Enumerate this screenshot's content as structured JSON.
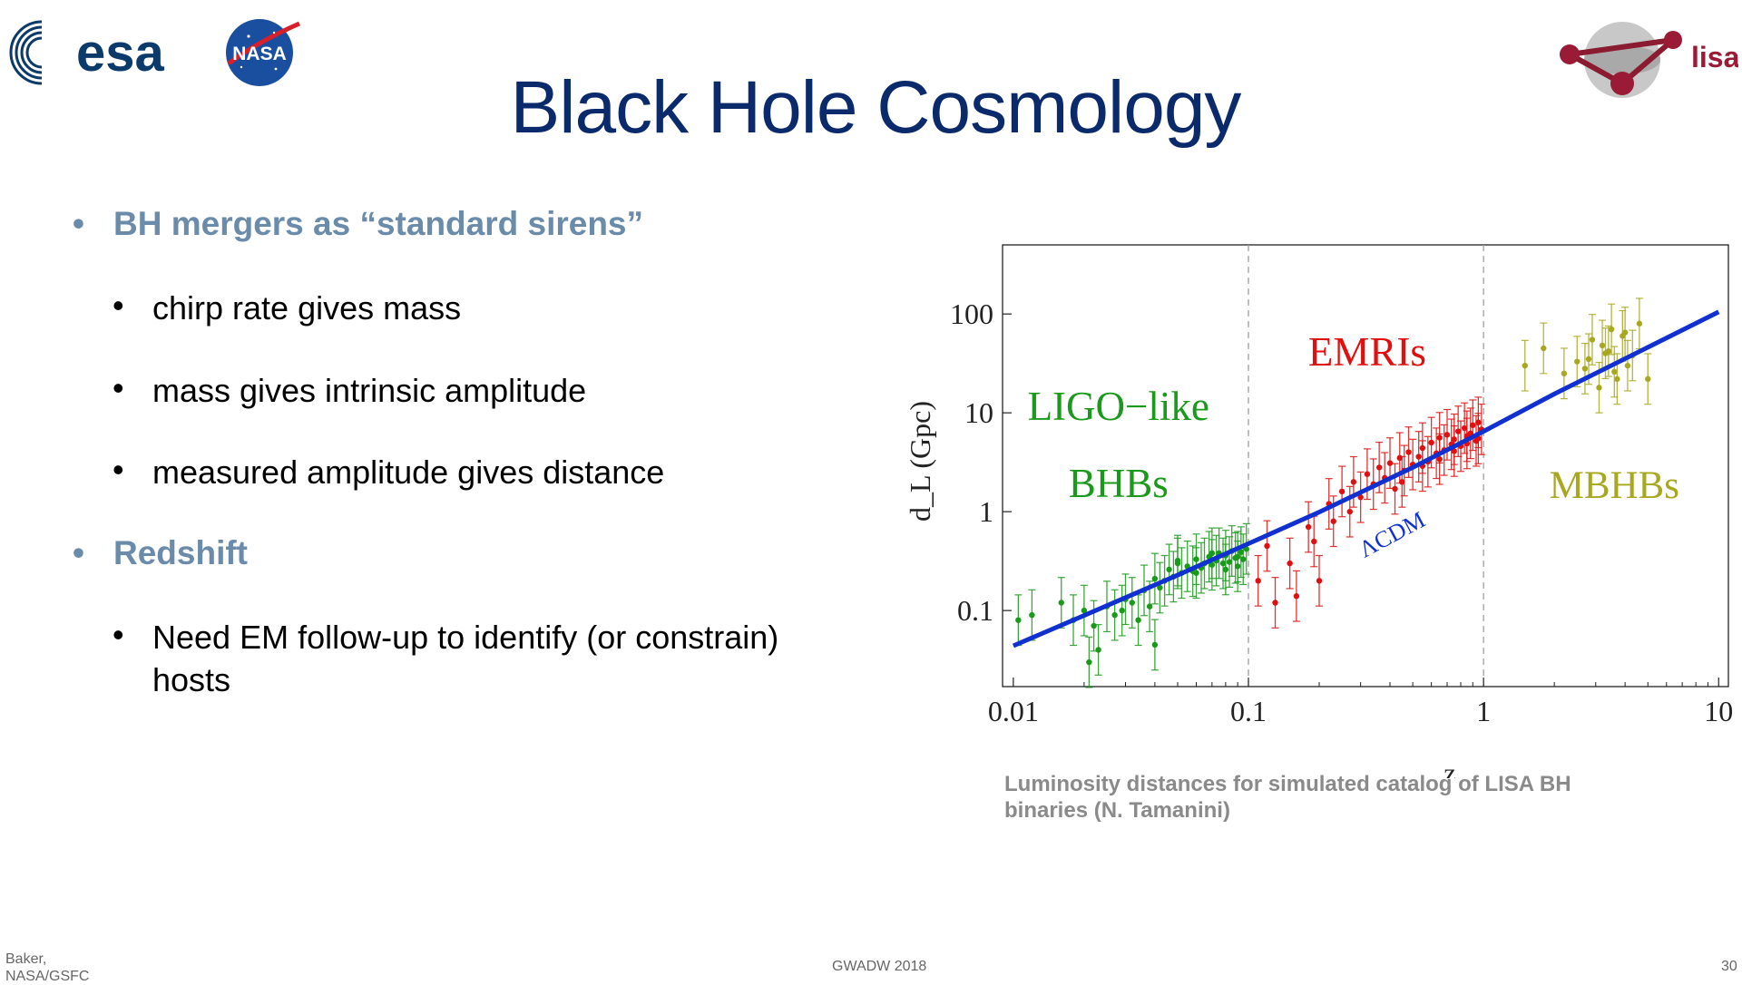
{
  "header": {
    "logos": {
      "esa": "esa",
      "nasa": "NASA",
      "lisa": "lisa"
    },
    "title": "Black Hole Cosmology"
  },
  "content": {
    "bullets": [
      {
        "level": 1,
        "text": "BH mergers as “standard sirens”"
      },
      {
        "level": 2,
        "text": "chirp rate gives mass"
      },
      {
        "level": 2,
        "text": "mass gives intrinsic amplitude"
      },
      {
        "level": 2,
        "text": "measured amplitude gives distance"
      },
      {
        "level": 1,
        "text": "Redshift"
      },
      {
        "level": 2,
        "text": "Need EM follow-up to identify (or constrain) hosts"
      }
    ],
    "caption": "Luminosity distances for simulated catalog of LISA BH binaries (N. Tamanini)"
  },
  "footer": {
    "author_line1": "Baker,",
    "author_line2": "NASA/GSFC",
    "event": "GWADW 2018",
    "page_number": "30"
  },
  "colors": {
    "title": "#0b2a6b",
    "bullet_level1": "#6b8bab",
    "ligo": "#1a9a1a",
    "emri": "#e01010",
    "mbhb": "#a8a820",
    "lcdm": "#1030d0"
  },
  "chart_data": {
    "type": "scatter",
    "xscale": "log",
    "yscale": "log",
    "xlim": [
      0.009,
      11
    ],
    "ylim": [
      0.017,
      500
    ],
    "xlabel": "z",
    "ylabel": "d_L (Gpc)",
    "xticks": [
      "0.01",
      "0.1",
      "1",
      "10"
    ],
    "yticks": [
      "0.1",
      "1",
      "10",
      "100"
    ],
    "vlines": [
      0.1,
      1
    ],
    "region_labels": [
      {
        "text": "LIGO−like",
        "series": "LIGO-like BHBs"
      },
      {
        "text": "BHBs",
        "series": "LIGO-like BHBs"
      },
      {
        "text": "EMRIs",
        "series": "EMRIs"
      },
      {
        "text": "MBHBs",
        "series": "MBHBs"
      }
    ],
    "curve": {
      "name": "ΛCDM",
      "x": [
        0.01,
        0.02,
        0.05,
        0.1,
        0.2,
        0.5,
        1,
        2,
        5,
        10
      ],
      "y": [
        0.044,
        0.089,
        0.228,
        0.475,
        0.99,
        2.8,
        6.5,
        15.5,
        46,
        105
      ]
    },
    "series": [
      {
        "name": "LIGO-like BHBs",
        "color": "#1a9a1a",
        "x": [
          0.0105,
          0.012,
          0.016,
          0.018,
          0.02,
          0.021,
          0.022,
          0.023,
          0.025,
          0.027,
          0.029,
          0.03,
          0.032,
          0.034,
          0.036,
          0.038,
          0.04,
          0.042,
          0.044,
          0.046,
          0.048,
          0.05,
          0.052,
          0.055,
          0.058,
          0.06,
          0.063,
          0.065,
          0.068,
          0.07,
          0.073,
          0.075,
          0.078,
          0.08,
          0.083,
          0.085,
          0.088,
          0.09,
          0.093,
          0.095,
          0.098,
          0.04,
          0.05,
          0.06,
          0.07,
          0.08,
          0.09
        ],
        "y": [
          0.08,
          0.09,
          0.12,
          0.08,
          0.1,
          0.03,
          0.07,
          0.04,
          0.11,
          0.09,
          0.1,
          0.13,
          0.12,
          0.08,
          0.16,
          0.11,
          0.045,
          0.17,
          0.2,
          0.26,
          0.22,
          0.3,
          0.24,
          0.28,
          0.25,
          0.33,
          0.27,
          0.3,
          0.35,
          0.29,
          0.32,
          0.38,
          0.3,
          0.36,
          0.31,
          0.4,
          0.34,
          0.28,
          0.39,
          0.33,
          0.42,
          0.21,
          0.32,
          0.24,
          0.38,
          0.26,
          0.35
        ]
      },
      {
        "name": "EMRIs",
        "color": "#e01010",
        "x": [
          0.11,
          0.12,
          0.13,
          0.15,
          0.16,
          0.18,
          0.19,
          0.2,
          0.22,
          0.23,
          0.25,
          0.27,
          0.28,
          0.3,
          0.32,
          0.34,
          0.36,
          0.38,
          0.4,
          0.42,
          0.44,
          0.46,
          0.48,
          0.5,
          0.53,
          0.55,
          0.58,
          0.6,
          0.63,
          0.65,
          0.68,
          0.7,
          0.73,
          0.75,
          0.78,
          0.8,
          0.83,
          0.85,
          0.88,
          0.9,
          0.93,
          0.95,
          0.98,
          0.45,
          0.55,
          0.65,
          0.75,
          0.85,
          0.95
        ],
        "y": [
          0.2,
          0.45,
          0.12,
          0.3,
          0.14,
          0.7,
          0.5,
          0.2,
          1.2,
          0.8,
          1.6,
          1.0,
          2.0,
          1.4,
          2.4,
          1.9,
          2.8,
          2.2,
          3.1,
          1.7,
          3.5,
          2.6,
          4.0,
          3.0,
          3.6,
          4.4,
          3.2,
          5.0,
          3.9,
          5.6,
          4.2,
          6.0,
          4.8,
          5.4,
          6.5,
          4.6,
          7.0,
          5.8,
          6.2,
          7.5,
          5.2,
          8.0,
          6.8,
          2.0,
          2.9,
          3.4,
          4.1,
          4.9,
          5.5
        ]
      },
      {
        "name": "MBHBs",
        "color": "#a8a820",
        "x": [
          1.5,
          1.8,
          2.2,
          2.5,
          2.7,
          2.9,
          3.1,
          3.3,
          3.5,
          3.7,
          3.9,
          4.1,
          4.3,
          4.6,
          5.0,
          2.8,
          3.2,
          3.6,
          4.0,
          3.4
        ],
        "y": [
          30,
          45,
          25,
          33,
          28,
          55,
          18,
          40,
          70,
          22,
          60,
          30,
          38,
          80,
          22,
          35,
          48,
          26,
          65,
          42
        ]
      }
    ]
  }
}
